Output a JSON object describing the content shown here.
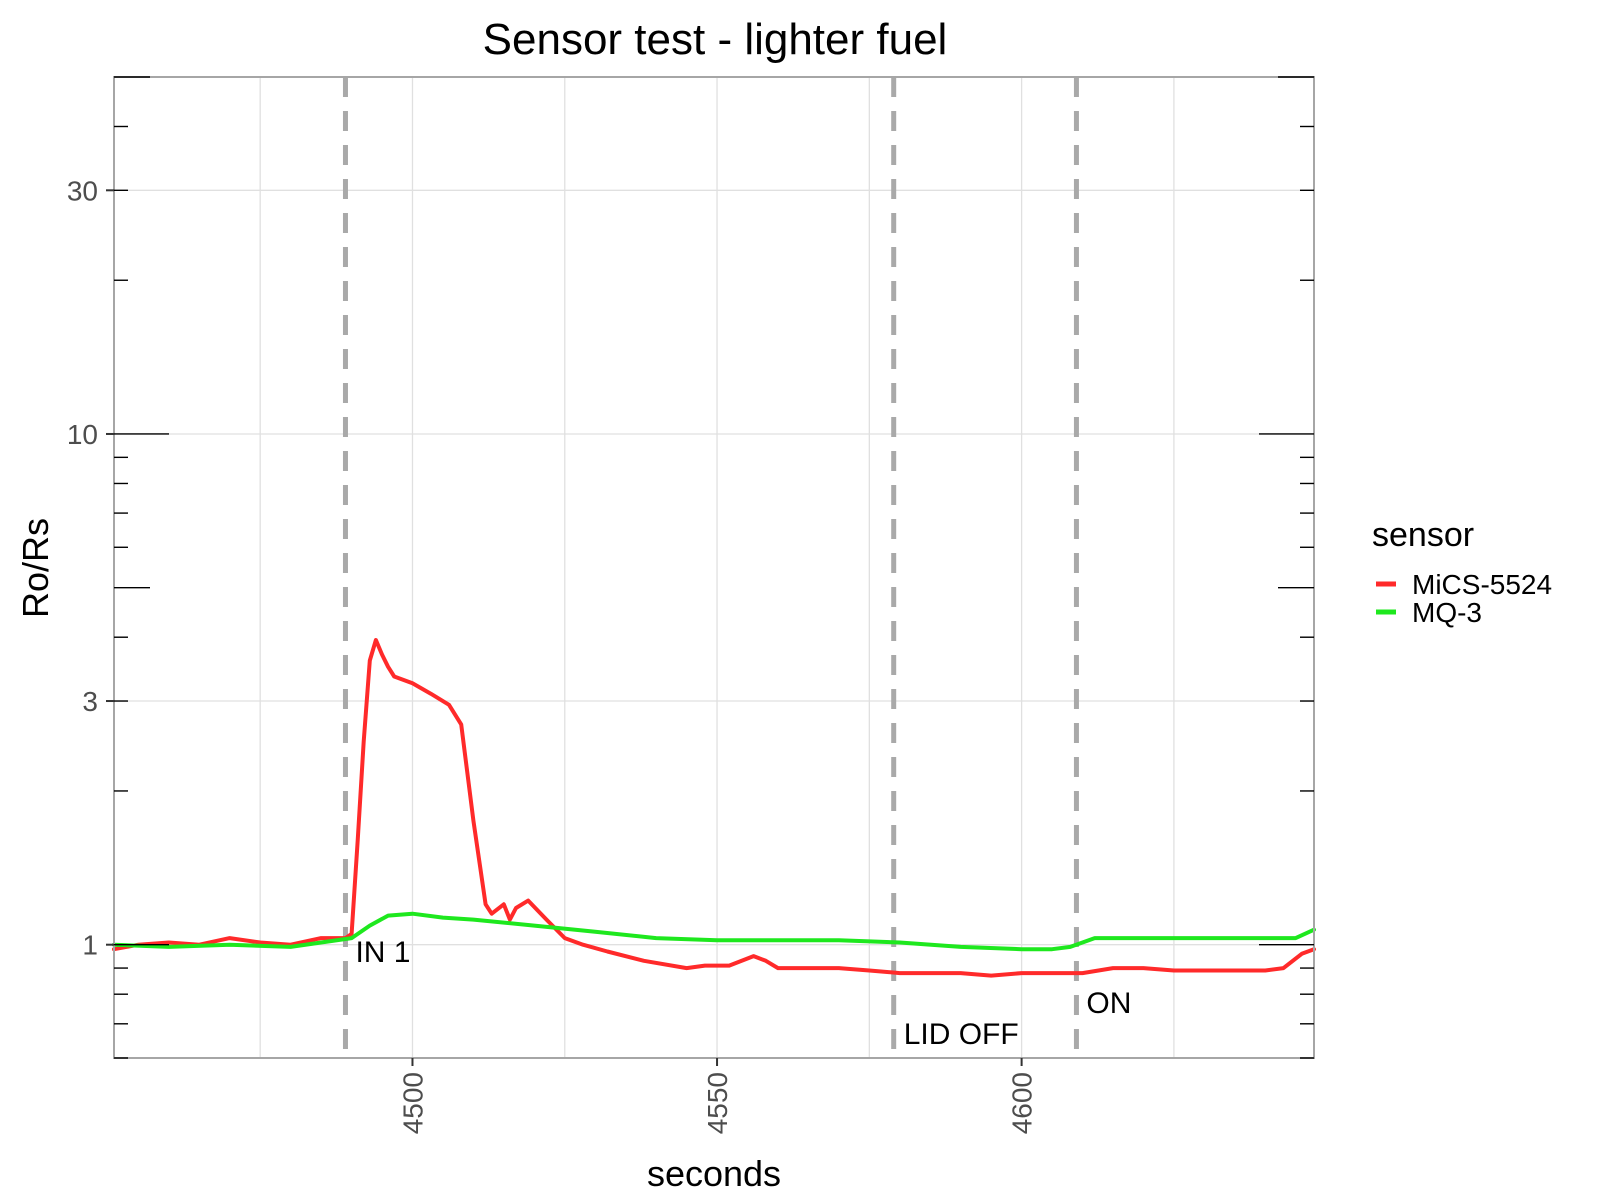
{
  "chart_data": {
    "type": "line",
    "title": "Sensor test - lighter fuel",
    "xlabel": "seconds",
    "ylabel": "Ro/Rs",
    "xlim": [
      4451,
      4648
    ],
    "ylim": [
      0.6,
      50
    ],
    "y_scale": "log",
    "grid": true,
    "x_ticks": [
      4500,
      4550,
      4600
    ],
    "x_tick_labels": [
      "4500",
      "4550",
      "4600"
    ],
    "y_ticks": [
      1,
      3,
      10,
      30
    ],
    "y_tick_labels": [
      "1",
      "3",
      "10",
      "30"
    ],
    "legend": {
      "title": "sensor",
      "position": "right"
    },
    "series": [
      {
        "name": "MiCS-5524",
        "color": "#ff2a2a",
        "x": [
          4451,
          4455,
          4460,
          4465,
          4470,
          4475,
          4480,
          4485,
          4489,
          4490,
          4491,
          4492,
          4493,
          4494,
          4495,
          4496,
          4497,
          4500,
          4503,
          4506,
          4508,
          4510,
          4512,
          4513,
          4515,
          4516,
          4517,
          4519,
          4522,
          4525,
          4528,
          4532,
          4538,
          4545,
          4548,
          4552,
          4556,
          4558,
          4560,
          4565,
          4570,
          4575,
          4580,
          4585,
          4590,
          4595,
          4600,
          4605,
          4610,
          4615,
          4620,
          4625,
          4630,
          4635,
          4640,
          4643,
          4646,
          4648
        ],
        "y": [
          0.98,
          1.0,
          1.01,
          1.0,
          1.03,
          1.01,
          1.0,
          1.03,
          1.03,
          1.05,
          1.6,
          2.5,
          3.6,
          3.95,
          3.7,
          3.5,
          3.35,
          3.25,
          3.1,
          2.95,
          2.7,
          1.75,
          1.2,
          1.15,
          1.2,
          1.12,
          1.18,
          1.22,
          1.12,
          1.03,
          1.0,
          0.97,
          0.93,
          0.9,
          0.91,
          0.91,
          0.95,
          0.93,
          0.9,
          0.9,
          0.9,
          0.89,
          0.88,
          0.88,
          0.88,
          0.87,
          0.88,
          0.88,
          0.88,
          0.9,
          0.9,
          0.89,
          0.89,
          0.89,
          0.89,
          0.9,
          0.96,
          0.98
        ]
      },
      {
        "name": "MQ-3",
        "color": "#1ee81e",
        "x": [
          4451,
          4460,
          4470,
          4480,
          4485,
          4490,
          4493,
          4496,
          4500,
          4505,
          4510,
          4520,
          4530,
          4540,
          4550,
          4560,
          4570,
          4580,
          4590,
          4600,
          4605,
          4608,
          4612,
          4620,
          4630,
          4640,
          4645,
          4648
        ],
        "y": [
          1.0,
          0.99,
          1.0,
          0.99,
          1.01,
          1.03,
          1.09,
          1.14,
          1.15,
          1.13,
          1.12,
          1.09,
          1.06,
          1.03,
          1.02,
          1.02,
          1.02,
          1.01,
          0.99,
          0.98,
          0.98,
          0.99,
          1.03,
          1.03,
          1.03,
          1.03,
          1.03,
          1.07
        ]
      }
    ],
    "vlines": [
      {
        "x": 4489,
        "label": "IN 1"
      },
      {
        "x": 4579,
        "label": "LID OFF"
      },
      {
        "x": 4609,
        "label": "ON"
      }
    ]
  }
}
